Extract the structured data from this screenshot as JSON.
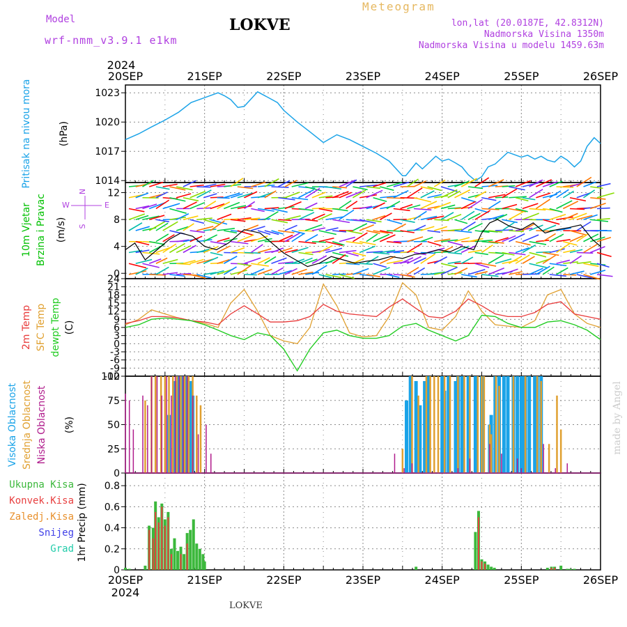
{
  "header": {
    "model_label": "Model",
    "model_name": "wrf-nmm_v3.9.1 e1km",
    "station": "LOKVE",
    "title": "Meteogram",
    "coords": "lon,lat (20.0187E, 42.8312N)",
    "elevation": "Nadmorska Visina 1350m",
    "model_elevation": "Nadmorska Visina u modelu 1459.63m",
    "footer_station": "LOKVE",
    "credit": "made by Angel"
  },
  "colors": {
    "pressure": "#1aa3e8",
    "wind_label": "#00c000",
    "t2m": "#e83a3a",
    "sfc": "#e0a030",
    "dewpt": "#22cc22",
    "cloud_high": "#1aa3e8",
    "cloud_mid": "#e0a030",
    "cloud_low": "#b01c8c",
    "wind_dir": "#b040e0",
    "grid": "#888888"
  },
  "chart_data": {
    "type": "line",
    "x_axis": {
      "year": "2024",
      "ticks": [
        "20SEP",
        "21SEP",
        "22SEP",
        "23SEP",
        "24SEP",
        "25SEP",
        "26SEP"
      ],
      "days": 6
    },
    "panels": [
      {
        "id": "pressure",
        "ylabel_name": "Pritisak na nivou mora",
        "ylabel_unit": "(hPa)",
        "yticks": [
          1014,
          1017,
          1020,
          1023
        ],
        "ylim": [
          1013.8,
          1023.8
        ],
        "series": [
          {
            "name": "Pritisak na nivou mora",
            "x": [
              0,
              0.17,
              0.33,
              0.5,
              0.67,
              0.83,
              1.0,
              1.17,
              1.25,
              1.33,
              1.42,
              1.5,
              1.67,
              1.83,
              1.92,
              2.0,
              2.17,
              2.33,
              2.5,
              2.67,
              2.83,
              3.0,
              3.17,
              3.33,
              3.5,
              3.54,
              3.67,
              3.75,
              3.83,
              3.92,
              4.0,
              4.08,
              4.17,
              4.25,
              4.33,
              4.42,
              4.5,
              4.58,
              4.67,
              4.75,
              4.83,
              5.0,
              5.08,
              5.17,
              5.25,
              5.33,
              5.42,
              5.5,
              5.58,
              5.67,
              5.75,
              5.83,
              5.92,
              6.0
            ],
            "values": [
              1018.2,
              1018.8,
              1019.5,
              1020.2,
              1021.0,
              1022.0,
              1022.5,
              1023.0,
              1022.7,
              1022.3,
              1021.5,
              1021.6,
              1023.1,
              1022.4,
              1022.0,
              1021.2,
              1020.0,
              1019.0,
              1017.9,
              1018.7,
              1018.2,
              1017.5,
              1016.8,
              1016.0,
              1014.5,
              1014.5,
              1015.8,
              1015.2,
              1015.8,
              1016.5,
              1016.0,
              1016.2,
              1015.8,
              1015.4,
              1014.6,
              1014.0,
              1014.4,
              1015.4,
              1015.7,
              1016.3,
              1016.9,
              1016.4,
              1016.6,
              1016.2,
              1016.5,
              1016.1,
              1015.9,
              1016.5,
              1016.1,
              1015.4,
              1016.0,
              1017.5,
              1018.4,
              1017.8
            ]
          }
        ]
      },
      {
        "id": "wind",
        "ylabel_name_1": "10m Vjetar",
        "ylabel_name_2": "Brzina i Pravac",
        "ylabel_unit": "(m/s)",
        "compass": {
          "n": "N",
          "s": "S",
          "e": "E",
          "w": "W"
        },
        "yticks": [
          0,
          4,
          8,
          12
        ],
        "ylim": [
          -0.8,
          13.5
        ],
        "series": [
          {
            "name": "wind speed",
            "x": [
              0,
              0.12,
              0.25,
              0.4,
              0.55,
              0.7,
              0.85,
              1.0,
              1.15,
              1.3,
              1.5,
              1.7,
              1.85,
              2.0,
              2.15,
              2.3,
              2.45,
              2.6,
              2.75,
              2.9,
              3.05,
              3.2,
              3.35,
              3.5,
              3.65,
              3.8,
              3.95,
              4.1,
              4.25,
              4.4,
              4.5,
              4.6,
              4.7,
              4.85,
              5.0,
              5.15,
              5.3,
              5.45,
              5.6,
              5.75,
              5.9,
              6.0
            ],
            "values": [
              3.5,
              4.5,
              2.0,
              3.5,
              5.0,
              6.0,
              5.5,
              4.0,
              3.5,
              4.5,
              6.5,
              6.0,
              4.5,
              3.0,
              2.0,
              1.0,
              1.5,
              2.5,
              2.0,
              1.5,
              1.8,
              2.0,
              2.5,
              2.2,
              2.8,
              3.0,
              3.5,
              3.2,
              4.0,
              3.5,
              6.0,
              7.5,
              8.0,
              7.0,
              6.5,
              7.5,
              6.0,
              6.5,
              6.8,
              7.2,
              5.0,
              4.0
            ]
          }
        ]
      },
      {
        "id": "temperature",
        "ylabel_names": [
          "2m Temp",
          "SFC Temp",
          "dewpt Temp"
        ],
        "ylabel_unit": "(C)",
        "yticks": [
          -12,
          -9,
          -6,
          -3,
          0,
          3,
          6,
          9,
          12,
          15,
          18,
          21,
          24
        ],
        "ylim": [
          -12,
          24
        ],
        "series": [
          {
            "name": "2m Temp",
            "x": [
              0,
              0.17,
              0.33,
              0.5,
              0.67,
              0.83,
              1.0,
              1.17,
              1.33,
              1.5,
              1.67,
              1.83,
              2.0,
              2.17,
              2.33,
              2.5,
              2.67,
              2.83,
              3.0,
              3.17,
              3.33,
              3.5,
              3.67,
              3.83,
              4.0,
              4.17,
              4.33,
              4.5,
              4.67,
              4.83,
              5.0,
              5.17,
              5.33,
              5.5,
              5.67,
              5.83,
              6.0
            ],
            "values": [
              7.5,
              8.5,
              10.0,
              10.0,
              9.5,
              8.5,
              8.0,
              7.0,
              11.0,
              14.0,
              11.0,
              8.0,
              8.0,
              8.5,
              10.0,
              14.5,
              12.0,
              11.0,
              10.5,
              10.0,
              13.5,
              16.5,
              13.0,
              10.0,
              9.5,
              12.0,
              16.5,
              14.0,
              11.0,
              10.0,
              10.0,
              11.5,
              14.5,
              15.5,
              11.0,
              10.0,
              9.0
            ]
          },
          {
            "name": "SFC Temp",
            "x": [
              0,
              0.17,
              0.33,
              0.5,
              0.67,
              0.83,
              1.0,
              1.17,
              1.33,
              1.5,
              1.67,
              1.83,
              2.0,
              2.17,
              2.33,
              2.5,
              2.67,
              2.83,
              3.0,
              3.17,
              3.33,
              3.5,
              3.67,
              3.83,
              4.0,
              4.17,
              4.33,
              4.5,
              4.67,
              4.83,
              5.0,
              5.17,
              5.33,
              5.5,
              5.67,
              5.83,
              6.0
            ],
            "values": [
              7.0,
              9.0,
              12.5,
              11.0,
              9.5,
              8.5,
              7.5,
              6.0,
              15.0,
              20.0,
              12.0,
              3.0,
              1.0,
              0.0,
              6.0,
              22.0,
              14.0,
              4.0,
              2.5,
              3.0,
              10.0,
              22.5,
              18.0,
              6.0,
              5.0,
              10.0,
              19.5,
              12.0,
              7.0,
              6.5,
              6.0,
              8.5,
              18.0,
              20.0,
              11.0,
              7.5,
              6.0
            ]
          },
          {
            "name": "dewpt Temp",
            "x": [
              0,
              0.17,
              0.33,
              0.5,
              0.67,
              0.83,
              1.0,
              1.17,
              1.33,
              1.5,
              1.67,
              1.83,
              2.0,
              2.17,
              2.33,
              2.5,
              2.67,
              2.83,
              3.0,
              3.17,
              3.33,
              3.5,
              3.67,
              3.83,
              4.0,
              4.17,
              4.33,
              4.5,
              4.67,
              4.83,
              5.0,
              5.17,
              5.33,
              5.5,
              5.67,
              5.83,
              6.0
            ],
            "values": [
              6.0,
              7.0,
              9.0,
              9.5,
              9.0,
              8.5,
              7.0,
              5.0,
              3.0,
              1.5,
              4.0,
              3.0,
              -2.0,
              -10.0,
              -2.0,
              4.0,
              5.0,
              3.0,
              2.0,
              2.0,
              3.0,
              6.5,
              7.5,
              5.0,
              3.0,
              1.0,
              3.0,
              10.5,
              10.0,
              7.5,
              6.0,
              6.0,
              8.0,
              8.5,
              7.0,
              5.0,
              1.5
            ]
          }
        ]
      },
      {
        "id": "clouds",
        "ylabel_names": [
          "Visoka Oblacnost",
          "Srednja Oblacnost",
          "Niska Oblacnost"
        ],
        "ylabel_unit": "(%)",
        "yticks": [
          0,
          25,
          50,
          75,
          100
        ],
        "ylim": [
          0,
          100
        ],
        "series": [
          {
            "name": "Visoka Oblacnost",
            "x": [
              0.55,
              0.62,
              0.68,
              0.72,
              0.78,
              0.82,
              0.85,
              3.55,
              3.6,
              3.67,
              3.72,
              3.78,
              3.83,
              4.0,
              4.03,
              4.08,
              4.17,
              4.2,
              4.25,
              4.33,
              4.42,
              4.5,
              4.6,
              4.62,
              4.67,
              4.72,
              4.78,
              4.83,
              4.9,
              4.95,
              5.0,
              5.03,
              5.05,
              5.1,
              5.17,
              5.2,
              5.25
            ],
            "values": [
              60,
              95,
              100,
              100,
              100,
              95,
              80,
              75,
              100,
              95,
              70,
              95,
              100,
              100,
              85,
              100,
              95,
              100,
              100,
              100,
              100,
              100,
              50,
              60,
              100,
              100,
              100,
              100,
              100,
              100,
              100,
              100,
              100,
              100,
              100,
              100,
              100
            ]
          },
          {
            "name": "Srednja Oblacnost",
            "x": [
              0.25,
              0.33,
              0.38,
              0.45,
              0.5,
              0.55,
              0.6,
              0.65,
              0.7,
              0.75,
              0.8,
              0.85,
              0.9,
              0.95,
              3.5,
              3.62,
              3.7,
              3.8,
              3.85,
              3.9,
              3.95,
              4.03,
              4.1,
              4.2,
              4.28,
              4.35,
              4.45,
              4.5,
              4.53,
              4.6,
              4.62,
              4.68,
              4.72,
              4.9,
              5.05,
              5.2,
              5.25,
              5.35,
              5.45,
              5.5
            ],
            "values": [
              75,
              100,
              100,
              100,
              100,
              100,
              100,
              100,
              100,
              100,
              100,
              100,
              80,
              70,
              25,
              100,
              80,
              100,
              100,
              100,
              100,
              100,
              100,
              100,
              100,
              100,
              100,
              100,
              100,
              50,
              40,
              100,
              90,
              100,
              100,
              100,
              95,
              30,
              80,
              45
            ]
          },
          {
            "name": "Niska Oblacnost",
            "x": [
              0.0,
              0.05,
              0.1,
              0.22,
              0.28,
              0.33,
              0.4,
              0.46,
              0.52,
              0.58,
              0.63,
              0.68,
              0.73,
              0.78,
              0.85,
              0.92,
              1.02,
              1.08,
              3.4,
              3.52,
              3.62,
              4.2,
              4.35,
              4.6,
              4.75,
              4.95,
              5.0,
              5.28,
              5.43,
              5.58
            ],
            "values": [
              82,
              75,
              45,
              80,
              70,
              100,
              100,
              80,
              100,
              80,
              100,
              100,
              100,
              100,
              80,
              40,
              50,
              20,
              20,
              5,
              10,
              5,
              15,
              30,
              20,
              15,
              5,
              30,
              5,
              10
            ]
          }
        ]
      },
      {
        "id": "precip",
        "ylabel_names": [
          "Ukupna Kisa",
          "Konvek.Kisa",
          "Zaledj.Kisa",
          "Snijeg",
          "Grad"
        ],
        "ylabel_unit": "1hr Precip (mm)",
        "yticks": [
          0,
          0.2,
          0.4,
          0.6,
          0.8
        ],
        "ylim": [
          0,
          0.92
        ],
        "series": [
          {
            "name": "Ukupna Kisa",
            "x": [
              0.0,
              0.05,
              0.25,
              0.3,
              0.35,
              0.38,
              0.42,
              0.46,
              0.5,
              0.54,
              0.58,
              0.62,
              0.66,
              0.7,
              0.74,
              0.78,
              0.82,
              0.86,
              0.9,
              0.94,
              0.98,
              1.0,
              3.67,
              4.42,
              4.46,
              4.5,
              4.54,
              4.58,
              4.62,
              4.66,
              5.33,
              5.38,
              5.42,
              5.5,
              5.58,
              5.62,
              5.67
            ],
            "values": [
              0.02,
              0.01,
              0.04,
              0.42,
              0.4,
              0.65,
              0.5,
              0.63,
              0.48,
              0.55,
              0.2,
              0.3,
              0.18,
              0.22,
              0.15,
              0.35,
              0.38,
              0.48,
              0.25,
              0.2,
              0.15,
              0.08,
              0.03,
              0.36,
              0.56,
              0.1,
              0.08,
              0.05,
              0.03,
              0.02,
              0.02,
              0.03,
              0.03,
              0.04,
              0.01,
              0.01,
              0.01
            ]
          },
          {
            "name": "Konvek.Kisa",
            "x": [
              0.3,
              0.35,
              0.38,
              0.42,
              0.46,
              0.5,
              0.54,
              0.58,
              0.7,
              0.78,
              4.46,
              4.5,
              4.54,
              5.38,
              5.42
            ],
            "values": [
              0.38,
              0.3,
              0.55,
              0.45,
              0.6,
              0.42,
              0.5,
              0.15,
              0.15,
              0.25,
              0.5,
              0.08,
              0.06,
              0.02,
              0.02
            ]
          }
        ]
      }
    ]
  }
}
